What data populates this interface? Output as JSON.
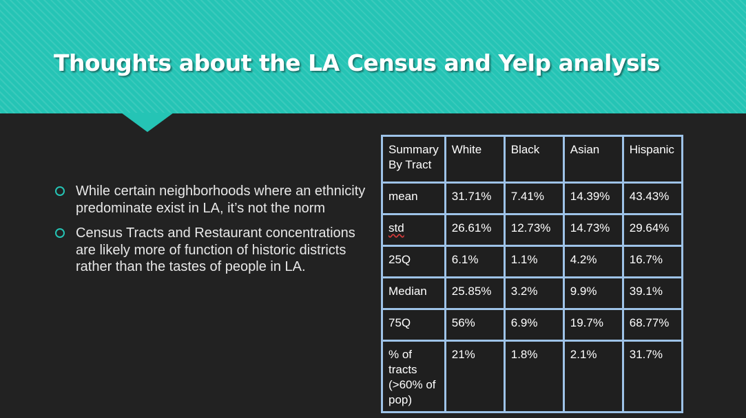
{
  "slide": {
    "title": "Thoughts about the LA Census and Yelp analysis",
    "bullets": [
      "While certain neighborhoods where an ethnicity predominate exist in LA, it’s not the norm",
      "Census Tracts and Restaurant concentrations are likely more of function of historic districts rather than the tastes of people in LA."
    ],
    "colors": {
      "accent": "#25c4b5",
      "background": "#222222",
      "table_border": "#9ec3e8"
    }
  },
  "table": {
    "headers": [
      "Summary By Tract",
      "White",
      "Black",
      "Asian",
      "Hispanic"
    ],
    "rows": [
      [
        "mean",
        "31.71%",
        "7.41%",
        "14.39%",
        "43.43%"
      ],
      [
        "std",
        "26.61%",
        "12.73%",
        "14.73%",
        "29.64%"
      ],
      [
        "25Q",
        "6.1%",
        "1.1%",
        "4.2%",
        "16.7%"
      ],
      [
        "Median",
        "25.85%",
        "3.2%",
        "9.9%",
        "39.1%"
      ],
      [
        "75Q",
        "56%",
        "6.9%",
        "19.7%",
        "68.77%"
      ],
      [
        "% of tracts (>60% of pop)",
        "21%",
        "1.8%",
        "2.1%",
        "31.7%"
      ]
    ]
  }
}
